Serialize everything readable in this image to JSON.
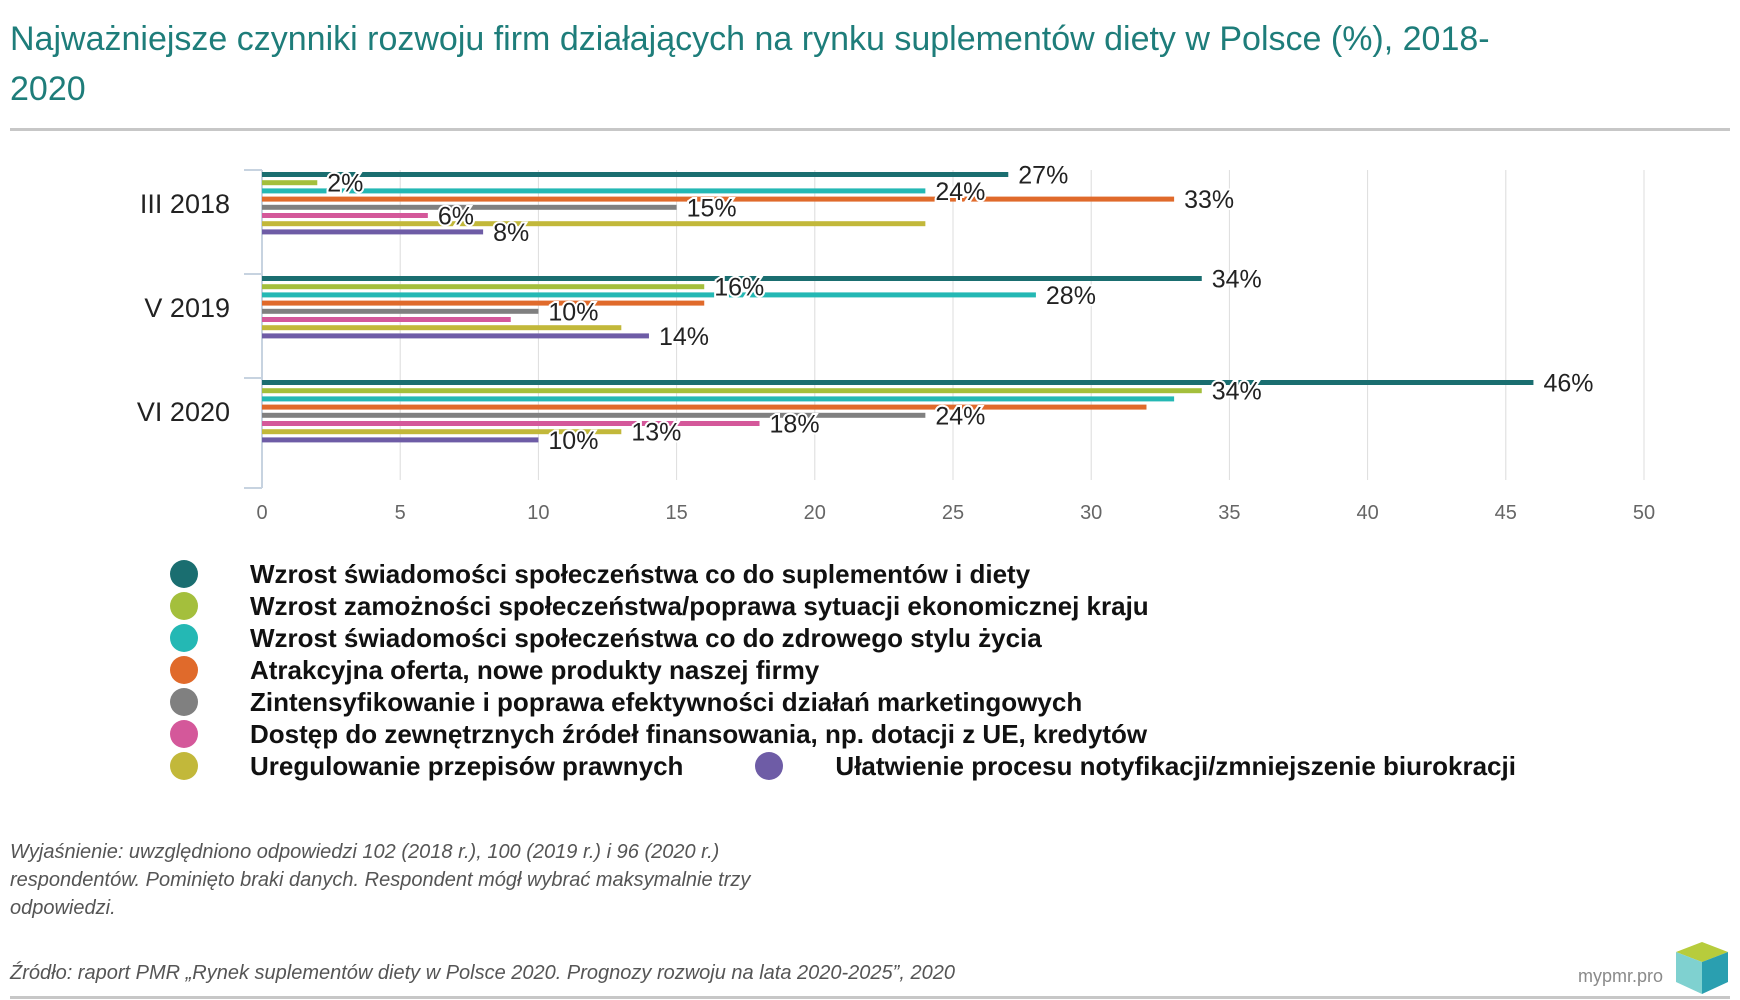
{
  "header": {
    "title": "Najważniejsze czynniki rozwoju firm działających na rynku suplementów diety w Polsce (%), 2018-2020"
  },
  "chart_data": {
    "type": "bar",
    "orientation": "horizontal",
    "categories": [
      "III 2018",
      "V 2019",
      "VI 2020"
    ],
    "xlim": [
      0,
      50
    ],
    "x_ticks": [
      "0",
      "5",
      "10",
      "15",
      "20",
      "25",
      "30",
      "35",
      "40",
      "45",
      "50"
    ],
    "grid": true,
    "series": [
      {
        "name": "Wzrost świadomości społeczeństwa co do suplementów i diety",
        "color": "#1a6e70",
        "values": [
          27,
          34,
          46
        ],
        "labels": [
          "27%",
          "34%",
          "46%"
        ]
      },
      {
        "name": "Wzrost zamożności społeczeństwa/poprawa sytuacji ekonomicznej kraju",
        "color": "#a4bf3c",
        "values": [
          2,
          16,
          34
        ],
        "labels": [
          "2%",
          "16%",
          "34%"
        ]
      },
      {
        "name": "Wzrost świadomości społeczeństwa co do zdrowego stylu życia",
        "color": "#24b8b4",
        "values": [
          24,
          28,
          33
        ],
        "labels": [
          "24%",
          "28%",
          null
        ]
      },
      {
        "name": "Atrakcyjna oferta, nowe produkty naszej firmy",
        "color": "#e06a2b",
        "values": [
          33,
          16,
          32
        ],
        "labels": [
          "33%",
          null,
          null
        ]
      },
      {
        "name": "Zintensyfikowanie i poprawa efektywności działań marketingowych",
        "color": "#808080",
        "values": [
          15,
          10,
          24
        ],
        "labels": [
          "15%",
          "10%",
          "24%"
        ]
      },
      {
        "name": "Dostęp do zewnętrznych źródeł finansowania, np. dotacji z UE, kredytów",
        "color": "#d4589a",
        "values": [
          6,
          9,
          18
        ],
        "labels": [
          "6%",
          null,
          "18%"
        ]
      },
      {
        "name": "Uregulowanie przepisów prawnych",
        "color": "#c2b83a",
        "values": [
          24,
          13,
          13
        ],
        "labels": [
          null,
          null,
          "13%"
        ]
      },
      {
        "name": "Ułatwienie procesu notyfikacji/zmniejszenie biurokracji",
        "color": "#6e5ca6",
        "values": [
          8,
          14,
          10
        ],
        "labels": [
          "8%",
          "14%",
          "10%"
        ]
      }
    ],
    "legend_position": "bottom"
  },
  "legend": {
    "items": [
      {
        "label": "Wzrost świadomości społeczeństwa co do suplementów i diety",
        "color": "#1a6e70"
      },
      {
        "label": "Wzrost zamożności społeczeństwa/poprawa sytuacji ekonomicznej kraju",
        "color": "#a4bf3c"
      },
      {
        "label": "Wzrost świadomości społeczeństwa co do zdrowego stylu życia",
        "color": "#24b8b4"
      },
      {
        "label": "Atrakcyjna oferta, nowe produkty naszej firmy",
        "color": "#e06a2b"
      },
      {
        "label": "Zintensyfikowanie i poprawa efektywności działań marketingowych",
        "color": "#808080"
      },
      {
        "label": "Dostęp do zewnętrznych źródeł finansowania, np. dotacji z UE, kredytów",
        "color": "#d4589a"
      },
      {
        "label": "Uregulowanie przepisów prawnych",
        "color": "#c2b83a"
      },
      {
        "label": "Ułatwienie procesu notyfikacji/zmniejszenie biurokracji",
        "color": "#6e5ca6"
      }
    ]
  },
  "footer": {
    "note": "Wyjaśnienie: uwzględniono odpowiedzi 102 (2018 r.), 100 (2019 r.) i 96 (2020 r.) respondentów. Pominięto braki danych. Respondent mógł wybrać maksymalnie trzy odpowiedzi.",
    "source": "Źródło: raport PMR „Rynek suplementów diety w Polsce 2020. Prognozy rozwoju na lata 2020-2025”, 2020",
    "brand": "mypmr.pro"
  }
}
